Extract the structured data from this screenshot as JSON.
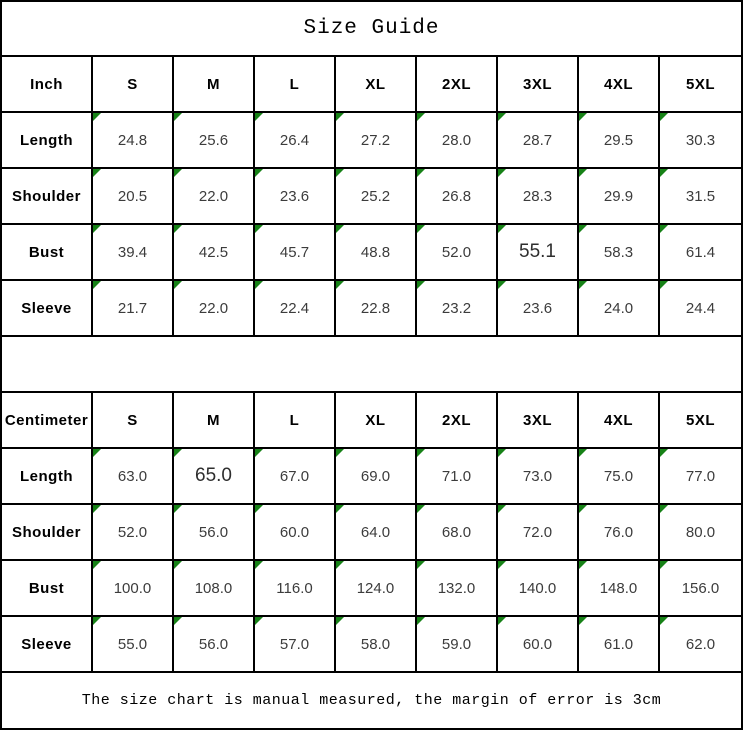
{
  "title": "Size Guide",
  "footer_note": "The size chart is manual measured, the margin of error is 3cm",
  "colors": {
    "triangle_green": "#178217",
    "border": "#000000",
    "data_text": "#3c3c3c"
  },
  "tables": [
    {
      "unit_label": "Inch",
      "sizes": [
        "S",
        "M",
        "L",
        "XL",
        "2XL",
        "3XL",
        "4XL",
        "5XL"
      ],
      "rows": [
        {
          "label": "Length",
          "values": [
            "24.8",
            "25.6",
            "26.4",
            "27.2",
            "28.0",
            "28.7",
            "29.5",
            "30.3"
          ]
        },
        {
          "label": "Shoulder",
          "values": [
            "20.5",
            "22.0",
            "23.6",
            "25.2",
            "26.8",
            "28.3",
            "29.9",
            "31.5"
          ]
        },
        {
          "label": "Bust",
          "values": [
            "39.4",
            "42.5",
            "45.7",
            "48.8",
            "52.0",
            "55.1",
            "58.3",
            "61.4"
          ]
        },
        {
          "label": "Sleeve",
          "values": [
            "21.7",
            "22.0",
            "22.4",
            "22.8",
            "23.2",
            "23.6",
            "24.0",
            "24.4"
          ]
        }
      ]
    },
    {
      "unit_label": "Centimeter",
      "sizes": [
        "S",
        "M",
        "L",
        "XL",
        "2XL",
        "3XL",
        "4XL",
        "5XL"
      ],
      "rows": [
        {
          "label": "Length",
          "values": [
            "63.0",
            "65.0",
            "67.0",
            "69.0",
            "71.0",
            "73.0",
            "75.0",
            "77.0"
          ]
        },
        {
          "label": "Shoulder",
          "values": [
            "52.0",
            "56.0",
            "60.0",
            "64.0",
            "68.0",
            "72.0",
            "76.0",
            "80.0"
          ]
        },
        {
          "label": "Bust",
          "values": [
            "100.0",
            "108.0",
            "116.0",
            "124.0",
            "132.0",
            "140.0",
            "148.0",
            "156.0"
          ]
        },
        {
          "label": "Sleeve",
          "values": [
            "55.0",
            "56.0",
            "57.0",
            "58.0",
            "59.0",
            "60.0",
            "61.0",
            "62.0"
          ]
        }
      ]
    }
  ],
  "emphasized_cells": [
    {
      "table": 0,
      "row": 2,
      "col": 5
    },
    {
      "table": 1,
      "row": 0,
      "col": 1
    }
  ]
}
